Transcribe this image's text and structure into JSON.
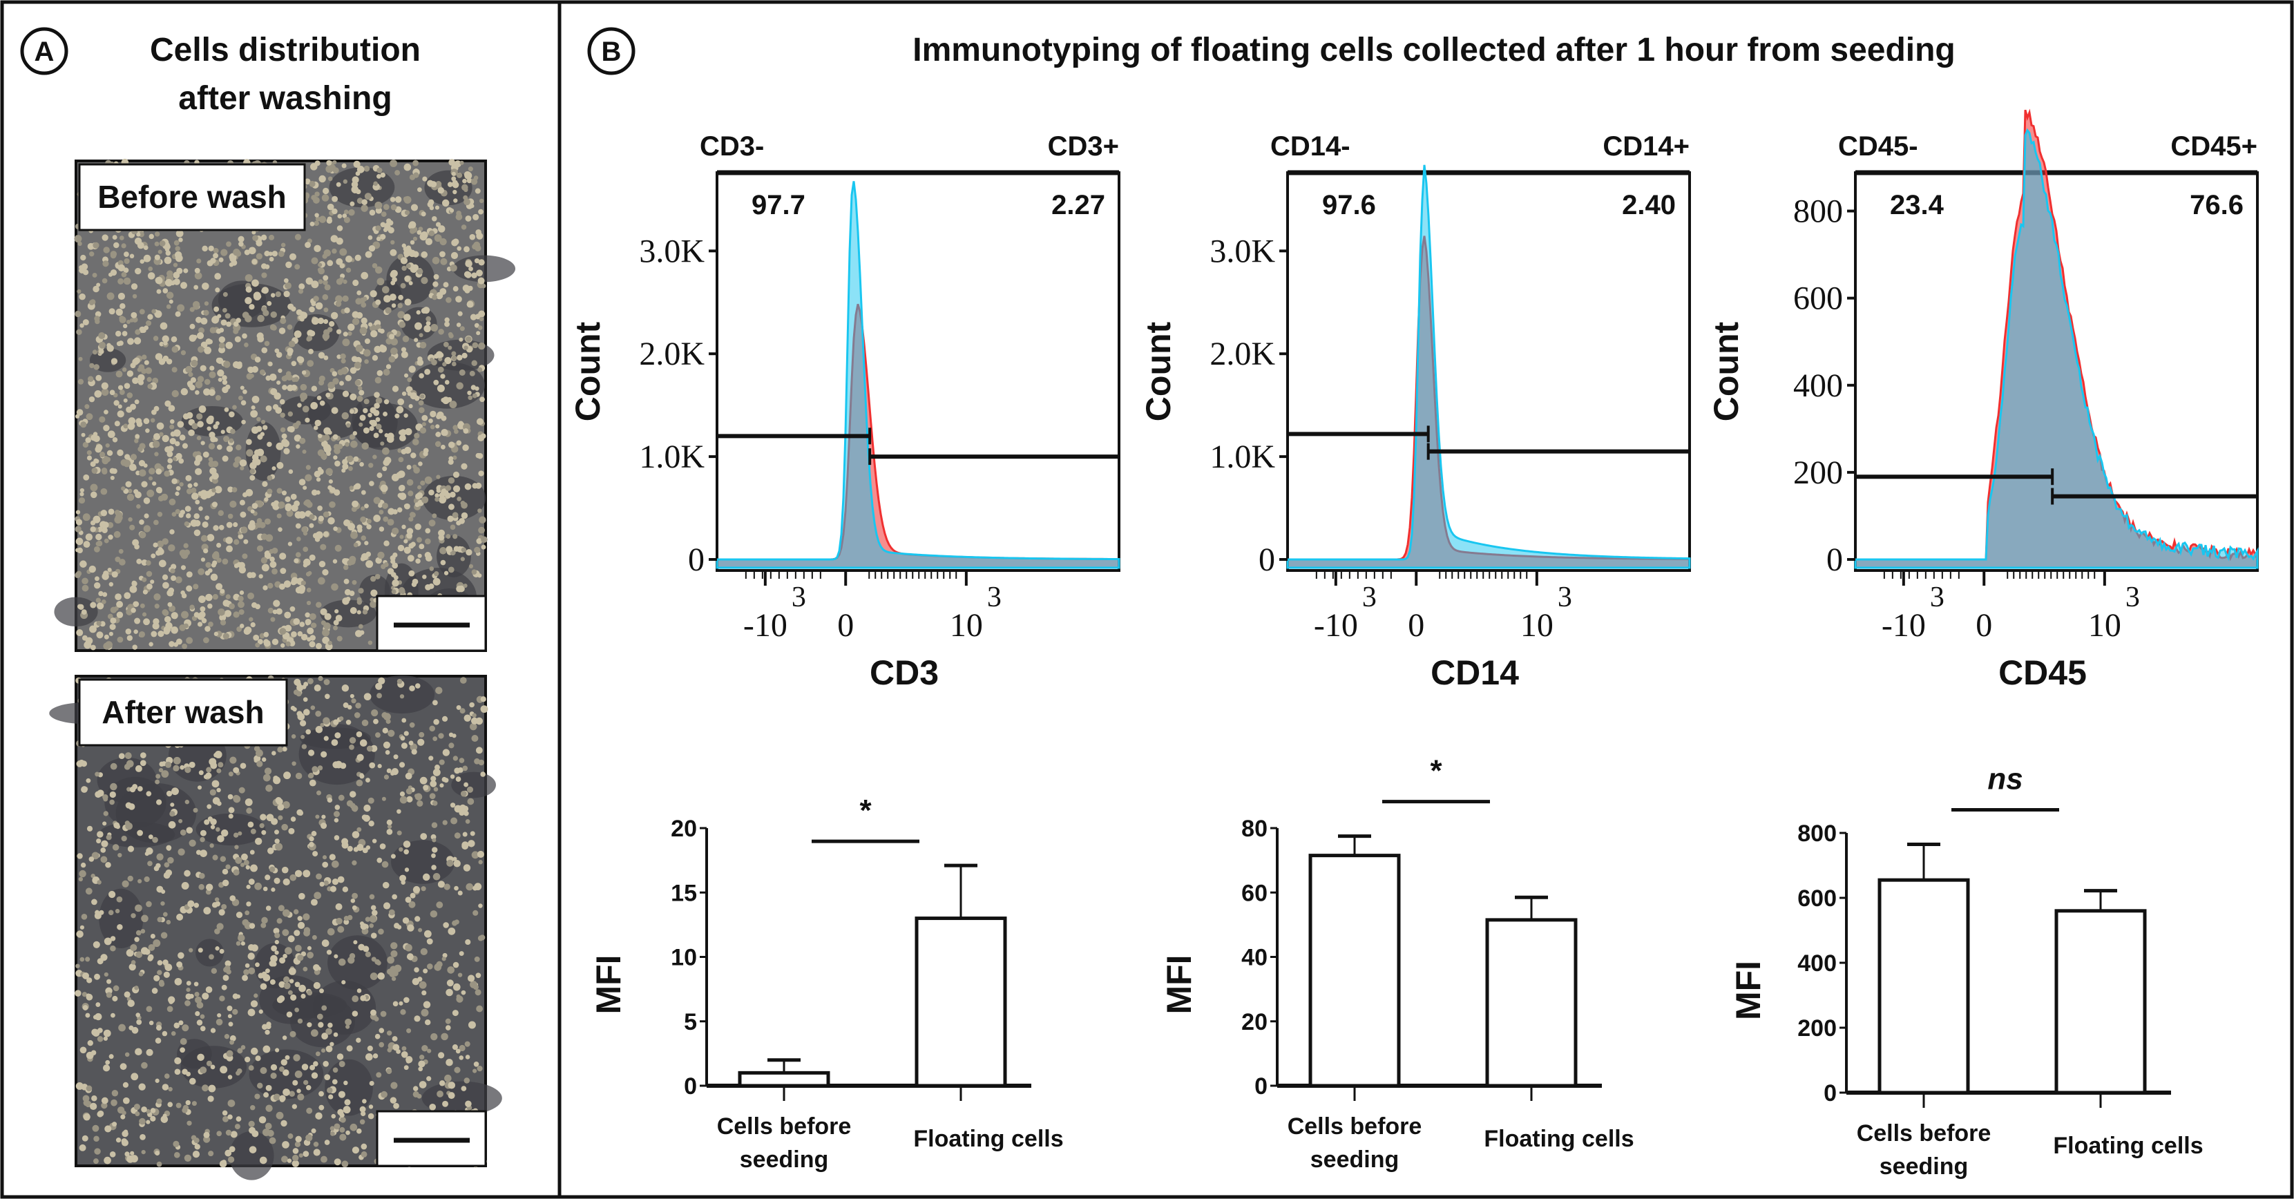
{
  "panelA": {
    "label": "A",
    "title_line1": "Cells distribution",
    "title_line2": "after washing",
    "images": [
      {
        "label": "Before wash",
        "density": "high"
      },
      {
        "label": "After wash",
        "density": "lower"
      }
    ]
  },
  "panelB": {
    "label": "B",
    "title": "Immunotyping of floating cells collected after 1 hour from seeding"
  },
  "colors": {
    "series_red": "#f03030",
    "series_blue": "#19c6f0",
    "overlap": "#7f9fb5"
  },
  "chart_data": [
    {
      "type": "histogram",
      "xlabel": "CD3",
      "ylabel": "Count",
      "neg_label": "CD3-",
      "pos_label": "CD3+",
      "neg_pct": "97.7",
      "pos_pct": "2.27",
      "yticks": [
        "0",
        "1.0K",
        "2.0K",
        "3.0K"
      ],
      "ytick_values": [
        0,
        1000,
        2000,
        3000
      ],
      "ylim": [
        0,
        3600
      ],
      "xticks": [
        "-10^3",
        "0",
        "10^3"
      ],
      "peak_red": 2400,
      "peak_blue": 3600,
      "gate_neg_level": 1200,
      "gate_pos_level": 1000
    },
    {
      "type": "histogram",
      "xlabel": "CD14",
      "ylabel": "Count",
      "neg_label": "CD14-",
      "pos_label": "CD14+",
      "neg_pct": "97.6",
      "pos_pct": "2.40",
      "yticks": [
        "0",
        "1.0K",
        "2.0K",
        "3.0K"
      ],
      "ytick_values": [
        0,
        1000,
        2000,
        3000
      ],
      "ylim": [
        0,
        3600
      ],
      "xticks": [
        "-10^3",
        "0",
        "10^3"
      ],
      "peak_red": 3050,
      "peak_blue": 3550,
      "gate_neg_level": 1220,
      "gate_pos_level": 1050
    },
    {
      "type": "histogram",
      "xlabel": "CD45",
      "ylabel": "Count",
      "neg_label": "CD45-",
      "pos_label": "CD45+",
      "neg_pct": "23.4",
      "pos_pct": "76.6",
      "yticks": [
        "0",
        "200",
        "400",
        "600",
        "800"
      ],
      "ytick_values": [
        0,
        200,
        400,
        600,
        800
      ],
      "ylim": [
        0,
        850
      ],
      "xticks": [
        "-10^3",
        "0",
        "10^3"
      ],
      "peak_red": 830,
      "peak_blue": 780,
      "gate_neg_level": 190,
      "gate_pos_level": 145
    },
    {
      "type": "bar",
      "ylabel": "MFI",
      "categories": [
        "Cells before seeding",
        "Floating cells"
      ],
      "values": [
        1.0,
        13.0
      ],
      "error_upper": [
        2.0,
        17.1
      ],
      "yticks": [
        "0",
        "5",
        "10",
        "15",
        "20"
      ],
      "ylim": [
        0,
        20
      ],
      "significance": "*"
    },
    {
      "type": "bar",
      "ylabel": "MFI",
      "categories": [
        "Cells before seeding",
        "Floating cells"
      ],
      "values": [
        71.5,
        51.5
      ],
      "error_upper": [
        77.5,
        58.5
      ],
      "yticks": [
        "0",
        "20",
        "40",
        "60",
        "80"
      ],
      "ylim": [
        0,
        80
      ],
      "significance": "*"
    },
    {
      "type": "bar",
      "ylabel": "MFI",
      "categories": [
        "Cells before seeding",
        "Floating cells"
      ],
      "values": [
        655,
        560
      ],
      "error_upper": [
        765,
        622
      ],
      "yticks": [
        "0",
        "200",
        "400",
        "600",
        "800"
      ],
      "ylim": [
        0,
        800
      ],
      "significance": "ns"
    }
  ]
}
